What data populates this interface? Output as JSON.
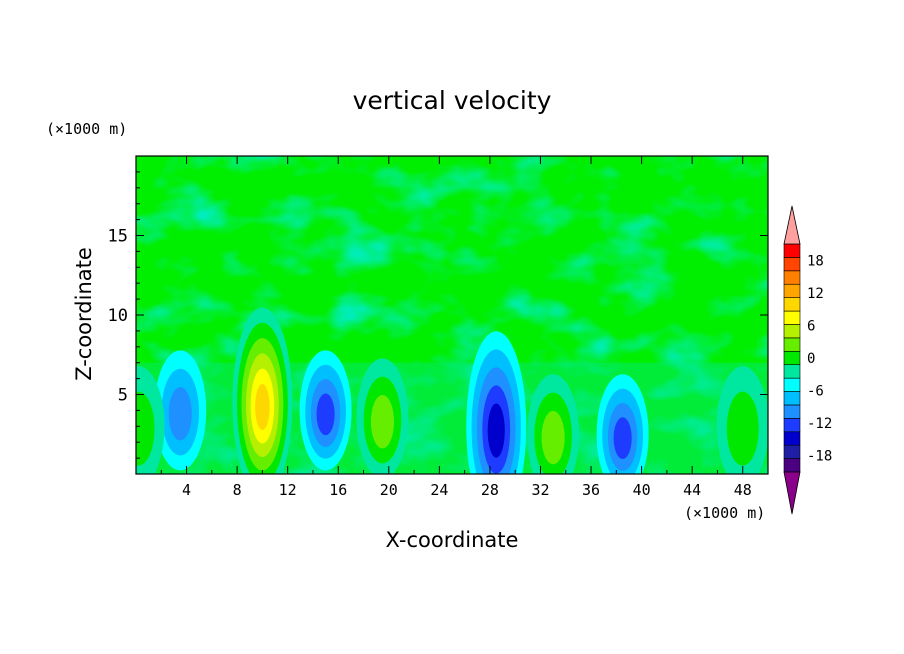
{
  "chart_data": {
    "type": "heatmap",
    "title": "vertical velocity",
    "xlabel": "X-coordinate",
    "ylabel": "Z-coordinate",
    "x_unit": "(×1000 m)",
    "z_unit": "(×1000 m)",
    "xlim": [
      0,
      50
    ],
    "ylim": [
      0,
      20
    ],
    "x_ticks": [
      "4",
      "8",
      "12",
      "16",
      "20",
      "24",
      "28",
      "32",
      "36",
      "40",
      "44",
      "48"
    ],
    "y_ticks": [
      "5",
      "10",
      "15"
    ],
    "colorbar": {
      "tick_labels": [
        "18",
        "12",
        "6",
        "0",
        "-6",
        "-12",
        "-18"
      ],
      "tick_values": [
        18,
        12,
        6,
        0,
        -6,
        -12,
        -18
      ],
      "levels": [
        -21,
        -18,
        -15,
        -12,
        -9,
        -6,
        -3,
        0,
        3,
        6,
        9,
        12,
        15,
        18,
        21
      ],
      "colors": [
        "#8b008b",
        "#4b0082",
        "#1f1fa5",
        "#0000cd",
        "#1e3cff",
        "#1e90ff",
        "#00bfff",
        "#00ffff",
        "#00e8a0",
        "#00e800",
        "#66ee00",
        "#b4f000",
        "#ffff00",
        "#ffd700",
        "#ffa500",
        "#ff7f00",
        "#ff4500",
        "#ff0000",
        "#ffa0a0"
      ],
      "extend": "both"
    },
    "features": [
      {
        "x": 10,
        "z": 4.5,
        "value": 17
      },
      {
        "x": 15,
        "z": 4,
        "value": -11
      },
      {
        "x": 19.5,
        "z": 3.5,
        "value": 8
      },
      {
        "x": 28.5,
        "z": 3,
        "value": -14
      },
      {
        "x": 33,
        "z": 2.5,
        "value": 8
      },
      {
        "x": 38.5,
        "z": 2.5,
        "value": -10
      },
      {
        "x": 3.5,
        "z": 4,
        "value": -9
      },
      {
        "x": 0.2,
        "z": 3,
        "value": 5
      },
      {
        "x": 48,
        "z": 3,
        "value": 4
      }
    ]
  }
}
